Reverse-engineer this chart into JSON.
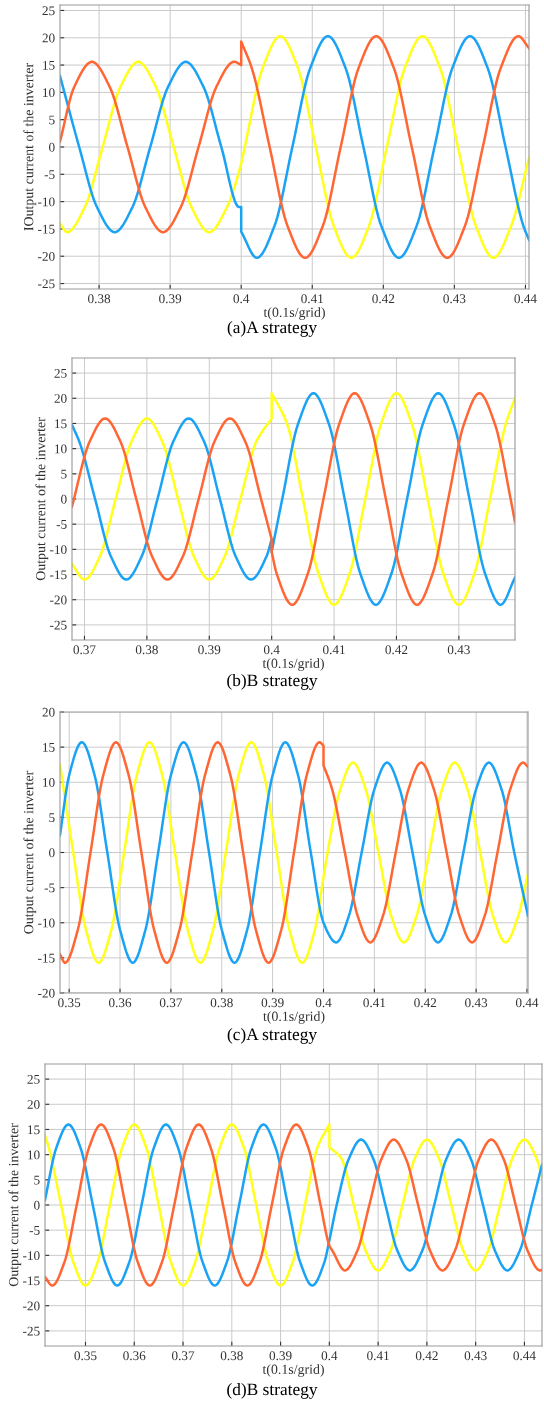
{
  "chart_data": [
    {
      "type": "line",
      "xlabel": "t(0.1s/grid)",
      "ylabel": "IOutput current of the inverter",
      "annotations": [
        "(a)A strategy"
      ],
      "grid": true,
      "xlim": [
        0.3745,
        0.4405
      ],
      "ylim": [
        -26,
        26
      ],
      "xticks": [
        0.38,
        0.39,
        0.4,
        0.41,
        0.42,
        0.43,
        0.44
      ],
      "yticks": [
        -25,
        -20,
        -15,
        -10,
        -5,
        0,
        5,
        10,
        15,
        20,
        25
      ],
      "series": [
        {
          "color": "#ffff1a",
          "x": [
            0.3745,
            0.3755,
            0.378,
            0.3805,
            0.383,
            0.3855,
            0.388,
            0.3905,
            0.393,
            0.3955,
            0.398,
            0.4,
            0.4005,
            0.403,
            0.4055,
            0.408,
            0.4105,
            0.413,
            0.4155,
            0.418,
            0.4205,
            0.423,
            0.4255,
            0.428,
            0.4305,
            0.433,
            0.4355,
            0.438,
            0.4405
          ],
          "values": [
            -14,
            -15.6,
            -11.0,
            0,
            11.0,
            15.6,
            11.0,
            0,
            -11.0,
            -15.6,
            -11.0,
            -3,
            0,
            14.4,
            20.3,
            14.4,
            0,
            -14.4,
            -20.3,
            -14.4,
            0,
            14.4,
            20.3,
            14.4,
            0,
            -14.4,
            -20.3,
            -14.4,
            -2
          ]
        },
        {
          "color": "#1aa3f5",
          "x": [
            0.3745,
            0.3772,
            0.3797,
            0.3822,
            0.3847,
            0.3872,
            0.3897,
            0.3922,
            0.3947,
            0.3972,
            0.3997,
            0.4,
            0.4,
            0.4022,
            0.4047,
            0.4072,
            0.4097,
            0.4122,
            0.4147,
            0.4172,
            0.4197,
            0.4222,
            0.4247,
            0.4272,
            0.4297,
            0.4322,
            0.4347,
            0.4372,
            0.4397,
            0.4405
          ],
          "values": [
            13,
            0,
            -11.0,
            -15.6,
            -11.0,
            0,
            11.0,
            15.6,
            11.0,
            0,
            -11.0,
            -11,
            -15.5,
            -20.3,
            -14.4,
            0,
            14.4,
            20.3,
            14.4,
            0,
            -14.4,
            -20.3,
            -14.4,
            0,
            14.4,
            20.3,
            14.4,
            0,
            -14.4,
            -17
          ]
        },
        {
          "color": "#ff6633",
          "x": [
            0.3745,
            0.3765,
            0.379,
            0.3815,
            0.384,
            0.3865,
            0.389,
            0.3915,
            0.394,
            0.3965,
            0.399,
            0.4,
            0.4,
            0.4015,
            0.404,
            0.4065,
            0.409,
            0.4115,
            0.414,
            0.4165,
            0.419,
            0.4215,
            0.424,
            0.4265,
            0.429,
            0.4315,
            0.434,
            0.4365,
            0.439,
            0.4405
          ],
          "values": [
            1,
            11.0,
            15.6,
            11.0,
            0,
            -11.0,
            -15.6,
            -11.0,
            0,
            11.0,
            15.6,
            15,
            19.3,
            14.4,
            0,
            -14.4,
            -20.3,
            -14.4,
            0,
            14.4,
            20.3,
            14.4,
            0,
            -14.4,
            -20.3,
            -14.4,
            0,
            14.4,
            20.3,
            18.1
          ]
        }
      ]
    },
    {
      "type": "line",
      "xlabel": "t(0.1s/grid)",
      "ylabel": "Output current of the inverter",
      "annotations": [
        "(b)B strategy"
      ],
      "grid": true,
      "xlim": [
        0.368,
        0.439
      ],
      "ylim": [
        -28,
        28
      ],
      "xticks": [
        0.37,
        0.38,
        0.39,
        0.4,
        0.41,
        0.42,
        0.43
      ],
      "yticks": [
        -25,
        -20,
        -15,
        -10,
        -5,
        0,
        5,
        10,
        15,
        20,
        25
      ],
      "series": [
        {
          "color": "#ffff1a",
          "x": [
            0.368,
            0.37,
            0.3725,
            0.375,
            0.3775,
            0.38,
            0.3825,
            0.385,
            0.3875,
            0.39,
            0.3925,
            0.395,
            0.3975,
            0.4,
            0.4,
            0.4025,
            0.405,
            0.4075,
            0.41,
            0.4125,
            0.415,
            0.4175,
            0.42,
            0.4225,
            0.425,
            0.4275,
            0.43,
            0.4325,
            0.435,
            0.4375,
            0.439
          ],
          "values": [
            -12.9,
            -16,
            -11.3,
            0,
            11.3,
            16,
            11.3,
            0,
            -11.3,
            -16,
            -11.3,
            0,
            11.3,
            16,
            21,
            14.8,
            0,
            -14.8,
            -21,
            -14.8,
            0,
            14.8,
            21,
            14.8,
            0,
            -14.8,
            -21,
            -14.8,
            0,
            14.8,
            20
          ]
        },
        {
          "color": "#1aa3f5",
          "x": [
            0.368,
            0.3692,
            0.3717,
            0.3742,
            0.3767,
            0.3792,
            0.3817,
            0.3842,
            0.3867,
            0.3892,
            0.3917,
            0.3942,
            0.3967,
            0.3992,
            0.4,
            0.4,
            0.4017,
            0.4042,
            0.4067,
            0.4092,
            0.4117,
            0.4142,
            0.4167,
            0.4192,
            0.4217,
            0.4242,
            0.4267,
            0.4292,
            0.4317,
            0.4342,
            0.4367,
            0.439
          ],
          "values": [
            14.7,
            11.3,
            0,
            -11.3,
            -16,
            -11.3,
            0,
            11.3,
            16,
            11.3,
            0,
            -11.3,
            -16,
            -11.3,
            -8,
            -10.5,
            0,
            14.8,
            21,
            14.8,
            0,
            -14.8,
            -21,
            -14.8,
            0,
            14.8,
            21,
            14.8,
            0,
            -14.8,
            -21,
            -15.6
          ]
        },
        {
          "color": "#ff6633",
          "x": [
            0.368,
            0.3708,
            0.3733,
            0.3758,
            0.3783,
            0.3808,
            0.3833,
            0.3858,
            0.3883,
            0.3908,
            0.3933,
            0.3958,
            0.3983,
            0.4,
            0.4,
            0.4008,
            0.4033,
            0.4058,
            0.4083,
            0.4108,
            0.4133,
            0.4158,
            0.4183,
            0.4208,
            0.4233,
            0.4258,
            0.4283,
            0.4308,
            0.4333,
            0.4358,
            0.4383,
            0.439
          ],
          "values": [
            -1.5,
            11.3,
            16,
            11.3,
            0,
            -11.3,
            -16,
            -11.3,
            0,
            11.3,
            16,
            11.3,
            0,
            -8,
            -10.5,
            -14.8,
            -21,
            -14.8,
            0,
            14.8,
            21,
            14.8,
            0,
            -14.8,
            -21,
            -14.8,
            0,
            14.8,
            21,
            14.8,
            0,
            -4.6
          ]
        }
      ]
    },
    {
      "type": "line",
      "xlabel": "t(0.1s/grid)",
      "ylabel": "Output current of the inverter",
      "annotations": [
        "(c)A strategy"
      ],
      "grid": true,
      "xlim": [
        0.3482,
        0.4402
      ],
      "ylim": [
        -20,
        20
      ],
      "xticks": [
        0.35,
        0.36,
        0.37,
        0.38,
        0.39,
        0.4,
        0.41,
        0.42,
        0.43,
        0.44
      ],
      "yticks": [
        -20,
        -15,
        -10,
        -5,
        0,
        5,
        10,
        15,
        20
      ],
      "series": [
        {
          "color": "#ffff1a",
          "x": [
            0.3482,
            0.3508,
            0.3533,
            0.3558,
            0.3583,
            0.3608,
            0.3633,
            0.3658,
            0.3683,
            0.3708,
            0.3733,
            0.3758,
            0.3783,
            0.3808,
            0.3833,
            0.3858,
            0.3883,
            0.3908,
            0.3933,
            0.3958,
            0.3983,
            0.4,
            0.4008,
            0.4033,
            0.4058,
            0.4083,
            0.4108,
            0.4133,
            0.4158,
            0.4183,
            0.4208,
            0.4233,
            0.4258,
            0.4283,
            0.4308,
            0.4333,
            0.4358,
            0.4383,
            0.4402
          ],
          "values": [
            12.5,
            0,
            -11,
            -15.7,
            -11,
            0,
            11,
            15.7,
            11,
            0,
            -11,
            -15.7,
            -11,
            0,
            11,
            15.7,
            11,
            0,
            -11,
            -15.7,
            -11,
            -3.5,
            0,
            9,
            12.8,
            9,
            0,
            -9,
            -12.8,
            -9,
            0,
            9,
            12.8,
            9,
            0,
            -9,
            -12.8,
            -9,
            -3
          ]
        },
        {
          "color": "#1aa3f5",
          "x": [
            0.3482,
            0.35,
            0.3525,
            0.355,
            0.3575,
            0.36,
            0.3625,
            0.365,
            0.3675,
            0.37,
            0.3725,
            0.375,
            0.3775,
            0.38,
            0.3825,
            0.385,
            0.3875,
            0.39,
            0.3925,
            0.395,
            0.3975,
            0.4,
            0.4025,
            0.405,
            0.4075,
            0.41,
            0.4125,
            0.415,
            0.4175,
            0.42,
            0.4225,
            0.425,
            0.4275,
            0.43,
            0.4325,
            0.435,
            0.4375,
            0.4402
          ],
          "values": [
            2.5,
            11,
            15.7,
            11,
            0,
            -11,
            -15.7,
            -11,
            0,
            11,
            15.7,
            11,
            0,
            -11,
            -15.7,
            -11,
            0,
            11,
            15.7,
            11,
            0,
            -10,
            -12.8,
            -9,
            0,
            9,
            12.8,
            9,
            0,
            -9,
            -12.8,
            -9,
            0,
            9,
            12.8,
            9,
            0,
            -9
          ]
        },
        {
          "color": "#ff6633",
          "x": [
            0.3482,
            0.3492,
            0.3517,
            0.3542,
            0.3567,
            0.3592,
            0.3617,
            0.3642,
            0.3667,
            0.3692,
            0.3717,
            0.3742,
            0.3767,
            0.3792,
            0.3817,
            0.3842,
            0.3867,
            0.3892,
            0.3917,
            0.3942,
            0.3967,
            0.3992,
            0.4,
            0.4,
            0.4017,
            0.4042,
            0.4067,
            0.4092,
            0.4117,
            0.4142,
            0.4167,
            0.4192,
            0.4217,
            0.4242,
            0.4267,
            0.4292,
            0.4317,
            0.4342,
            0.4367,
            0.4392,
            0.4402
          ],
          "values": [
            -14.5,
            -15.7,
            -11,
            0,
            11,
            15.7,
            11,
            0,
            -11,
            -15.7,
            -11,
            0,
            11,
            15.7,
            11,
            0,
            -11,
            -15.7,
            -11,
            0,
            11,
            15.7,
            15.2,
            12.4,
            9,
            0,
            -9,
            -12.8,
            -9,
            0,
            9,
            12.8,
            9,
            0,
            -9,
            -12.8,
            -9,
            0,
            9,
            12.8,
            12.2
          ]
        }
      ]
    },
    {
      "type": "line",
      "xlabel": "t(0.1s/grid)",
      "ylabel": "Output current of the inverter",
      "annotations": [
        "(d)B strategy"
      ],
      "grid": true,
      "xlim": [
        0.3417,
        0.4436
      ],
      "ylim": [
        -28,
        28
      ],
      "xticks": [
        0.35,
        0.36,
        0.37,
        0.38,
        0.39,
        0.4,
        0.41,
        0.42,
        0.43,
        0.44
      ],
      "yticks": [
        -25,
        -20,
        -15,
        -10,
        -5,
        0,
        5,
        10,
        15,
        20,
        25
      ],
      "series": [
        {
          "color": "#ffff1a",
          "x": [
            0.3417,
            0.3425,
            0.345,
            0.3475,
            0.35,
            0.3525,
            0.355,
            0.3575,
            0.36,
            0.3625,
            0.365,
            0.3675,
            0.37,
            0.3725,
            0.375,
            0.3775,
            0.38,
            0.3825,
            0.385,
            0.3875,
            0.39,
            0.3925,
            0.395,
            0.3975,
            0.4,
            0.4,
            0.4025,
            0.405,
            0.4075,
            0.41,
            0.4125,
            0.415,
            0.4175,
            0.42,
            0.4225,
            0.425,
            0.4275,
            0.43,
            0.4325,
            0.435,
            0.4375,
            0.44,
            0.4425,
            0.4436
          ],
          "values": [
            13.8,
            11.3,
            0,
            -11.3,
            -16,
            -11.3,
            0,
            11.3,
            16,
            11.3,
            0,
            -11.3,
            -16,
            -11.3,
            0,
            11.3,
            16,
            11.3,
            0,
            -11.3,
            -16,
            -11.3,
            0,
            11.3,
            16,
            11.5,
            9.2,
            0,
            -9.2,
            -13,
            -9.2,
            0,
            9.2,
            13,
            9.2,
            0,
            -9.2,
            -13,
            -9.2,
            0,
            9.2,
            13,
            9.2,
            5.5
          ]
        },
        {
          "color": "#1aa3f5",
          "x": [
            0.3417,
            0.344,
            0.3465,
            0.349,
            0.3515,
            0.354,
            0.3565,
            0.359,
            0.3615,
            0.364,
            0.3665,
            0.369,
            0.3715,
            0.374,
            0.3765,
            0.379,
            0.3815,
            0.384,
            0.3865,
            0.389,
            0.3915,
            0.394,
            0.3965,
            0.399,
            0.4,
            0.4015,
            0.404,
            0.4065,
            0.409,
            0.4115,
            0.414,
            0.4165,
            0.419,
            0.4215,
            0.424,
            0.4265,
            0.429,
            0.4315,
            0.434,
            0.4365,
            0.439,
            0.4415,
            0.4436
          ],
          "values": [
            1,
            11.3,
            16,
            11.3,
            0,
            -11.3,
            -16,
            -11.3,
            0,
            11.3,
            16,
            11.3,
            0,
            -11.3,
            -16,
            -11.3,
            0,
            11.3,
            16,
            11.3,
            0,
            -11.3,
            -16,
            -11.3,
            -7,
            0,
            9.2,
            13,
            9.2,
            0,
            -9.2,
            -13,
            -9.2,
            0,
            9.2,
            13,
            9.2,
            0,
            -9.2,
            -13,
            -9.2,
            0,
            8
          ]
        },
        {
          "color": "#ff6633",
          "x": [
            0.3417,
            0.3432,
            0.3457,
            0.3482,
            0.3507,
            0.3532,
            0.3557,
            0.3582,
            0.3607,
            0.3632,
            0.3657,
            0.3682,
            0.3707,
            0.3732,
            0.3757,
            0.3782,
            0.3807,
            0.3832,
            0.3857,
            0.3882,
            0.3907,
            0.3932,
            0.3957,
            0.3982,
            0.4,
            0.4007,
            0.4032,
            0.4057,
            0.4082,
            0.4107,
            0.4132,
            0.4157,
            0.4182,
            0.4207,
            0.4232,
            0.4257,
            0.4282,
            0.4307,
            0.4332,
            0.4357,
            0.4382,
            0.4407,
            0.4432,
            0.4436
          ],
          "values": [
            -14.3,
            -16,
            -11.3,
            0,
            11.3,
            16,
            11.3,
            0,
            -11.3,
            -16,
            -11.3,
            0,
            11.3,
            16,
            11.3,
            0,
            -11.3,
            -16,
            -11.3,
            0,
            11.3,
            16,
            11.3,
            0,
            -8,
            -9.2,
            -13,
            -9.2,
            0,
            9.2,
            13,
            9.2,
            0,
            -9.2,
            -13,
            -9.2,
            0,
            9.2,
            13,
            9.2,
            0,
            -9.2,
            -13,
            -12.9
          ]
        }
      ]
    }
  ]
}
